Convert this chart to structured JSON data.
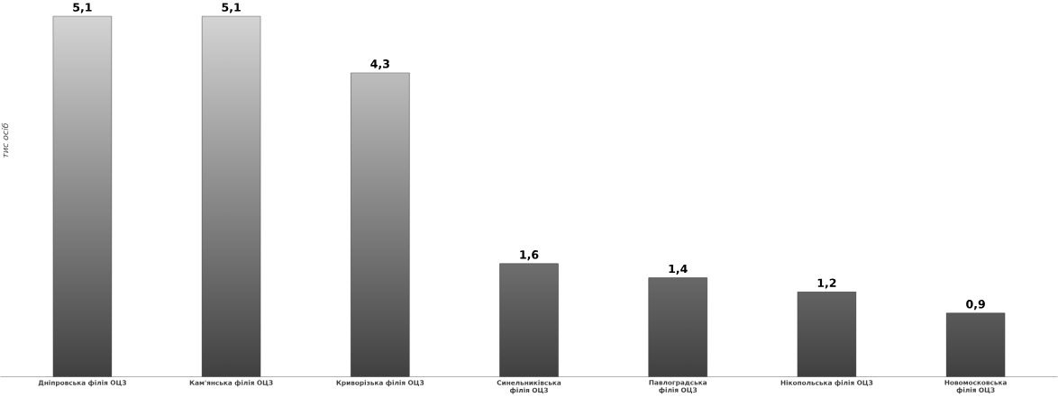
{
  "chart_data": {
    "type": "bar",
    "ylabel": "тис осіб",
    "categories": [
      "Дніпровська філія ОЦЗ",
      "Кам'янська філія ОЦЗ",
      "Криворізька філія ОЦЗ",
      "Синельниківська філія ОЦЗ",
      "Павлоградська філія ОЦЗ",
      "Нікопольська філія ОЦЗ",
      "Новомосковська філія ОЦЗ"
    ],
    "values": [
      5.1,
      5.1,
      4.3,
      1.6,
      1.4,
      1.2,
      0.9
    ],
    "value_labels": [
      "5,1",
      "5,1",
      "4,3",
      "1,6",
      "1,4",
      "1,2",
      "0,9"
    ],
    "color": "#707070"
  }
}
